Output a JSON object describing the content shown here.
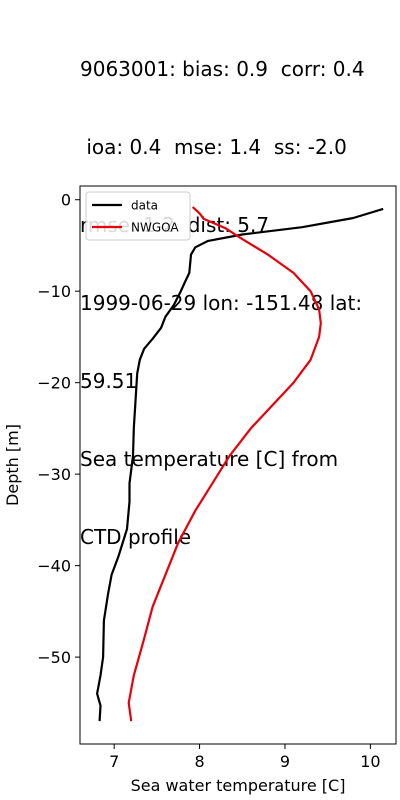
{
  "title_lines": [
    "9063001: bias: 0.9  corr: 0.4",
    " ioa: 0.4  mse: 1.4  ss: -2.0",
    "rmse: 1.2  dist: 5.7",
    "1999-06-29 lon: -151.48 lat:",
    "59.51",
    "Sea temperature [C] from",
    "CTD profile"
  ],
  "chart_data": {
    "type": "line",
    "xlabel": "Sea water temperature [C]",
    "ylabel": "Depth [m]",
    "xlim": [
      6.6,
      10.3
    ],
    "ylim": [
      -59.5,
      1.5
    ],
    "xticks": [
      7,
      8,
      9,
      10
    ],
    "yticks": [
      0,
      -10,
      -20,
      -30,
      -40,
      -50
    ],
    "legend_position": "top-left",
    "grid": false,
    "series": [
      {
        "name": "data",
        "color": "#000000",
        "points": [
          [
            10.15,
            -1
          ],
          [
            9.8,
            -2
          ],
          [
            9.2,
            -3
          ],
          [
            8.5,
            -3.8
          ],
          [
            8.1,
            -4.5
          ],
          [
            7.95,
            -5.2
          ],
          [
            7.9,
            -6
          ],
          [
            7.88,
            -8
          ],
          [
            7.83,
            -9
          ],
          [
            7.78,
            -10
          ],
          [
            7.7,
            -11.5
          ],
          [
            7.6,
            -12.8
          ],
          [
            7.55,
            -14
          ],
          [
            7.45,
            -15.2
          ],
          [
            7.35,
            -16.3
          ],
          [
            7.3,
            -17.5
          ],
          [
            7.27,
            -19
          ],
          [
            7.25,
            -22
          ],
          [
            7.23,
            -25
          ],
          [
            7.22,
            -28
          ],
          [
            7.18,
            -31
          ],
          [
            7.18,
            -33
          ],
          [
            7.15,
            -36
          ],
          [
            7.05,
            -39
          ],
          [
            6.97,
            -41
          ],
          [
            6.93,
            -43
          ],
          [
            6.88,
            -46
          ],
          [
            6.87,
            -50
          ],
          [
            6.84,
            -52
          ],
          [
            6.8,
            -54
          ],
          [
            6.84,
            -55.3
          ],
          [
            6.83,
            -57
          ]
        ]
      },
      {
        "name": "NWGOA",
        "color": "#e8000b",
        "points": [
          [
            7.92,
            -0.8
          ],
          [
            8.0,
            -1.5
          ],
          [
            8.05,
            -2.1
          ],
          [
            8.3,
            -3.1
          ],
          [
            8.5,
            -4.3
          ],
          [
            8.8,
            -6
          ],
          [
            9.1,
            -8
          ],
          [
            9.3,
            -10
          ],
          [
            9.4,
            -12
          ],
          [
            9.42,
            -13.5
          ],
          [
            9.4,
            -15
          ],
          [
            9.3,
            -17.5
          ],
          [
            9.1,
            -20
          ],
          [
            8.85,
            -22.5
          ],
          [
            8.6,
            -25
          ],
          [
            8.35,
            -28
          ],
          [
            8.15,
            -31
          ],
          [
            7.95,
            -34
          ],
          [
            7.75,
            -37.5
          ],
          [
            7.6,
            -41
          ],
          [
            7.45,
            -44.5
          ],
          [
            7.35,
            -48
          ],
          [
            7.23,
            -52
          ],
          [
            7.17,
            -55
          ],
          [
            7.2,
            -57
          ]
        ]
      }
    ]
  }
}
